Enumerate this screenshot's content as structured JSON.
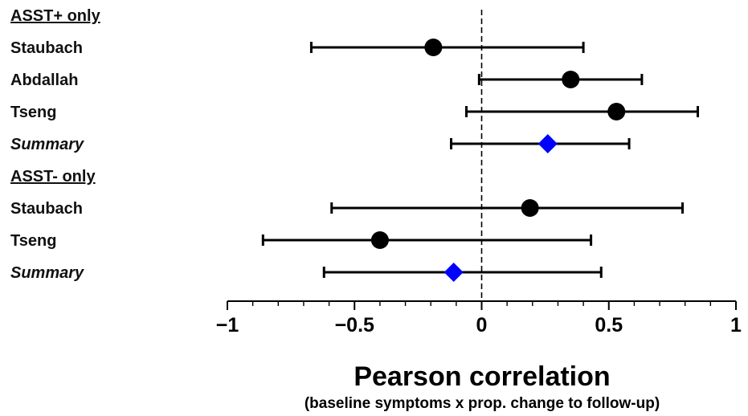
{
  "chart_data": {
    "type": "forest",
    "xlabel": "Pearson correlation",
    "xlabel_sub": "(baseline symptoms x prop. change to follow-up)",
    "xlim": [
      -1,
      1
    ],
    "x_ticks": [
      {
        "value": -1,
        "label": "−1"
      },
      {
        "value": -0.5,
        "label": "−0.5"
      },
      {
        "value": 0,
        "label": "0"
      },
      {
        "value": 0.5,
        "label": "0.5"
      },
      {
        "value": 1,
        "label": "1"
      }
    ],
    "reference_line": 0,
    "rows": [
      {
        "label": "ASST+ only",
        "kind": "group"
      },
      {
        "label": "Staubach",
        "kind": "study",
        "estimate": -0.19,
        "lower": -0.67,
        "upper": 0.4
      },
      {
        "label": "Abdallah",
        "kind": "study",
        "estimate": 0.35,
        "lower": -0.01,
        "upper": 0.63
      },
      {
        "label": "Tseng",
        "kind": "study",
        "estimate": 0.53,
        "lower": -0.06,
        "upper": 0.85
      },
      {
        "label": "Summary",
        "kind": "summary",
        "estimate": 0.26,
        "lower": -0.12,
        "upper": 0.58
      },
      {
        "label": "ASST- only",
        "kind": "group"
      },
      {
        "label": "Staubach",
        "kind": "study",
        "estimate": 0.19,
        "lower": -0.59,
        "upper": 0.79
      },
      {
        "label": "Tseng",
        "kind": "study",
        "estimate": -0.4,
        "lower": -0.86,
        "upper": 0.43
      },
      {
        "label": "Summary",
        "kind": "summary",
        "estimate": -0.11,
        "lower": -0.62,
        "upper": 0.47
      }
    ],
    "colors": {
      "study_marker": "#000000",
      "summary_marker": "#0000ff",
      "summary_label": "#0000ee",
      "line": "#000000"
    }
  }
}
